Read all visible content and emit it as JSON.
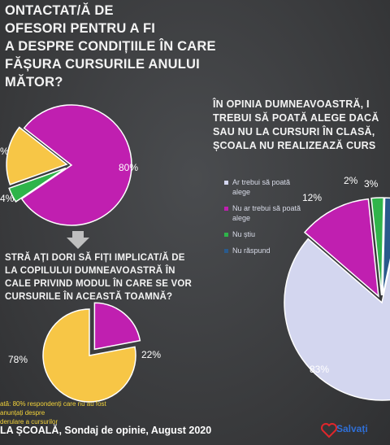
{
  "questions": {
    "q1": "ONTACTAT/Ă DE\nOFESORI PENTRU A FI\nA DESPRE CONDIȚIILE ÎN CARE\nFĂȘURA CURSURILE ANULUI\nMĂTOR?",
    "q2": "STRĂ AȚI DORI SĂ FIȚI IMPLICAT/Ă DE\nLA COPILULUI DUMNEAVOASTRĂ ÎN\nCALE PRIVIND MODUL ÎN CARE SE VOR\nCURSURILE ÎN ACEASTĂ TOAMNĂ?",
    "q3": "ÎN OPINIA DUMNEAVOASTRĂ, I\nTREBUI SĂ POATĂ ALEGE DACĂ\nSAU NU LA CURSURI ÎN CLASĂ,\nȘCOALA NU REALIZEAZĂ CURS"
  },
  "chart_data": [
    {
      "type": "pie",
      "categories": [
        "",
        "",
        ""
      ],
      "values": [
        80,
        4,
        16
      ],
      "value_labels": [
        "80%",
        "4%",
        "%"
      ],
      "colors": [
        "#c01fb0",
        "#2fb44a",
        "#f7c646"
      ]
    },
    {
      "type": "pie",
      "categories": [
        "",
        ""
      ],
      "values": [
        22,
        78
      ],
      "value_labels": [
        "22%",
        "78%"
      ],
      "colors": [
        "#c01fb0",
        "#f7c646"
      ]
    },
    {
      "type": "pie",
      "categories": [
        "Ar trebui să poată alege",
        "Nu ar trebui să poată alege",
        "Nu știu",
        "Nu răspund"
      ],
      "values": [
        83,
        12,
        2,
        3
      ],
      "value_labels": [
        "83%",
        "12%",
        "2%",
        "3%"
      ],
      "colors": [
        "#d3d6ef",
        "#c01fb0",
        "#2fb44a",
        "#2a5a8c"
      ],
      "legend": "left"
    }
  ],
  "note": "ată: 80% respondenți care nu au fost anunțați despre\nderulare a cursurilor",
  "footer": "LA ȘCOALĂ, Sondaj de opinie, August 2020",
  "logo": {
    "name": "heart-logo",
    "text": "Salvați"
  },
  "arrow_icon": "arrow-down-icon"
}
